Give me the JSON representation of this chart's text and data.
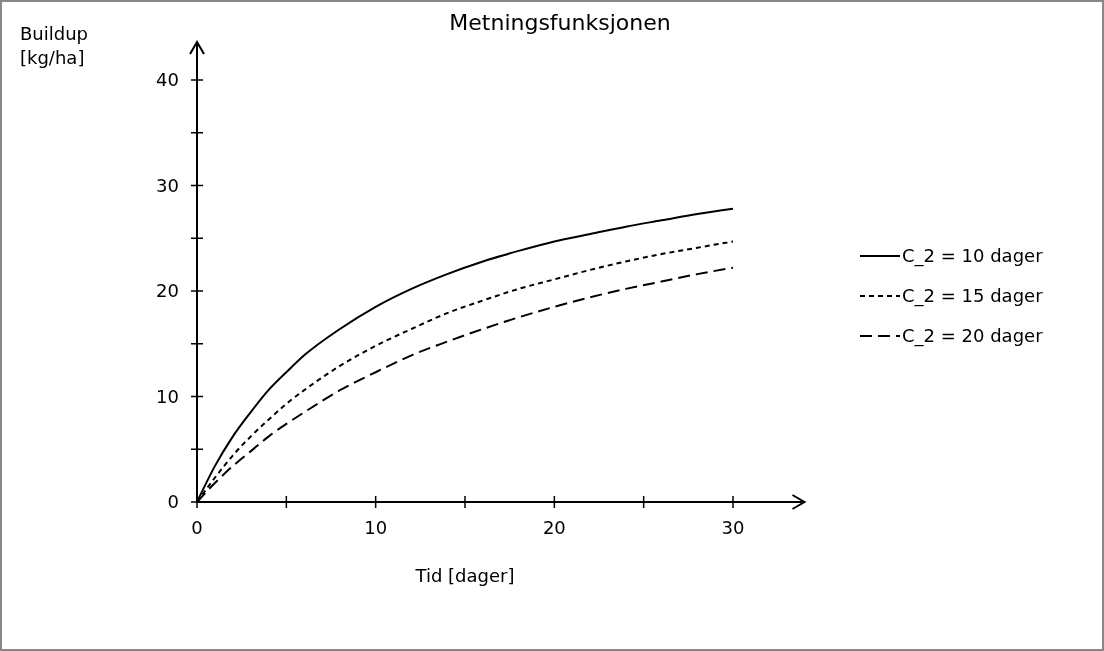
{
  "chart_data": {
    "type": "line",
    "title": "Metningsfunksjonen",
    "xlabel": "Tid [dager]",
    "ylabel": "Buildup [kg/ha]",
    "x": [
      0,
      1,
      2,
      3,
      4,
      5,
      6,
      8,
      10,
      12,
      14,
      16,
      18,
      20,
      22,
      24,
      26,
      28,
      30
    ],
    "series": [
      {
        "name": "C_2 = 10 dager",
        "color": "#000000",
        "line_style": "solid",
        "values": [
          0,
          3.4,
          6.2,
          8.5,
          10.6,
          12.3,
          13.9,
          16.4,
          18.5,
          20.2,
          21.6,
          22.8,
          23.8,
          24.7,
          25.4,
          26.1,
          26.7,
          27.3,
          27.8
        ]
      },
      {
        "name": "C_2 = 15 dager",
        "color": "#000000",
        "line_style": "dotted",
        "values": [
          0,
          2.3,
          4.4,
          6.2,
          7.8,
          9.3,
          10.6,
          12.9,
          14.8,
          16.4,
          17.9,
          19.1,
          20.2,
          21.1,
          22.0,
          22.8,
          23.5,
          24.1,
          24.7
        ]
      },
      {
        "name": "C_2 = 20 dager",
        "color": "#000000",
        "line_style": "dashed",
        "values": [
          0,
          1.8,
          3.4,
          4.8,
          6.2,
          7.4,
          8.5,
          10.6,
          12.3,
          13.9,
          15.2,
          16.4,
          17.5,
          18.5,
          19.4,
          20.2,
          20.9,
          21.6,
          22.2
        ]
      }
    ],
    "xlim": [
      0,
      34
    ],
    "ylim": [
      0,
      43.6
    ],
    "xticks": [
      0,
      {
        "value": 5,
        "label": null
      },
      10,
      {
        "value": 15,
        "label": null
      },
      20,
      {
        "value": 25,
        "label": null
      },
      30
    ],
    "yticks": [
      0,
      {
        "value": 5,
        "label": null
      },
      10,
      {
        "value": 15,
        "label": null
      },
      20,
      {
        "value": 25,
        "label": null
      },
      30,
      {
        "value": 35,
        "label": null
      },
      40
    ],
    "grid": false,
    "legend": "right",
    "marker": "none"
  }
}
